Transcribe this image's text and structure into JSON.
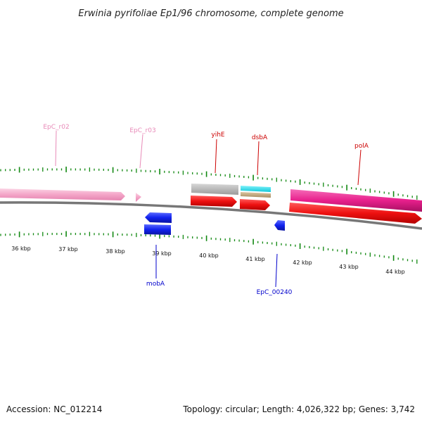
{
  "title": "Erwinia pyrifoliae Ep1/96 chromosome, complete genome",
  "footer": {
    "accession": "Accession: NC_012214",
    "summary": "Topology: circular; Length: 4,026,322 bp; Genes: 3,742"
  },
  "ruler_labels": [
    "36 kbp",
    "37 kbp",
    "38 kbp",
    "39 kbp",
    "40 kbp",
    "41 kbp",
    "42 kbp",
    "43 kbp",
    "44 kbp"
  ],
  "gene_labels": {
    "EpC_r02": "EpC_r02",
    "EpC_r03": "EpC_r03",
    "yihE": "yihE",
    "dsbA": "dsbA",
    "polA": "polA",
    "mobA": "mobA",
    "EpC_00240": "EpC_00240"
  },
  "colors": {
    "rna_pink": "#f4a6c8",
    "label_pink": "#e88ab8",
    "cds_red": "#ee1111",
    "label_red": "#cc0000",
    "cds_blue": "#1122ee",
    "label_blue": "#0000cc",
    "gray": "#b8b8b8",
    "cyan": "#22e0f0",
    "tan": "#c8b08a",
    "magenta": "#e8208c",
    "tick_green": "#118811",
    "backbone": "#777777"
  }
}
